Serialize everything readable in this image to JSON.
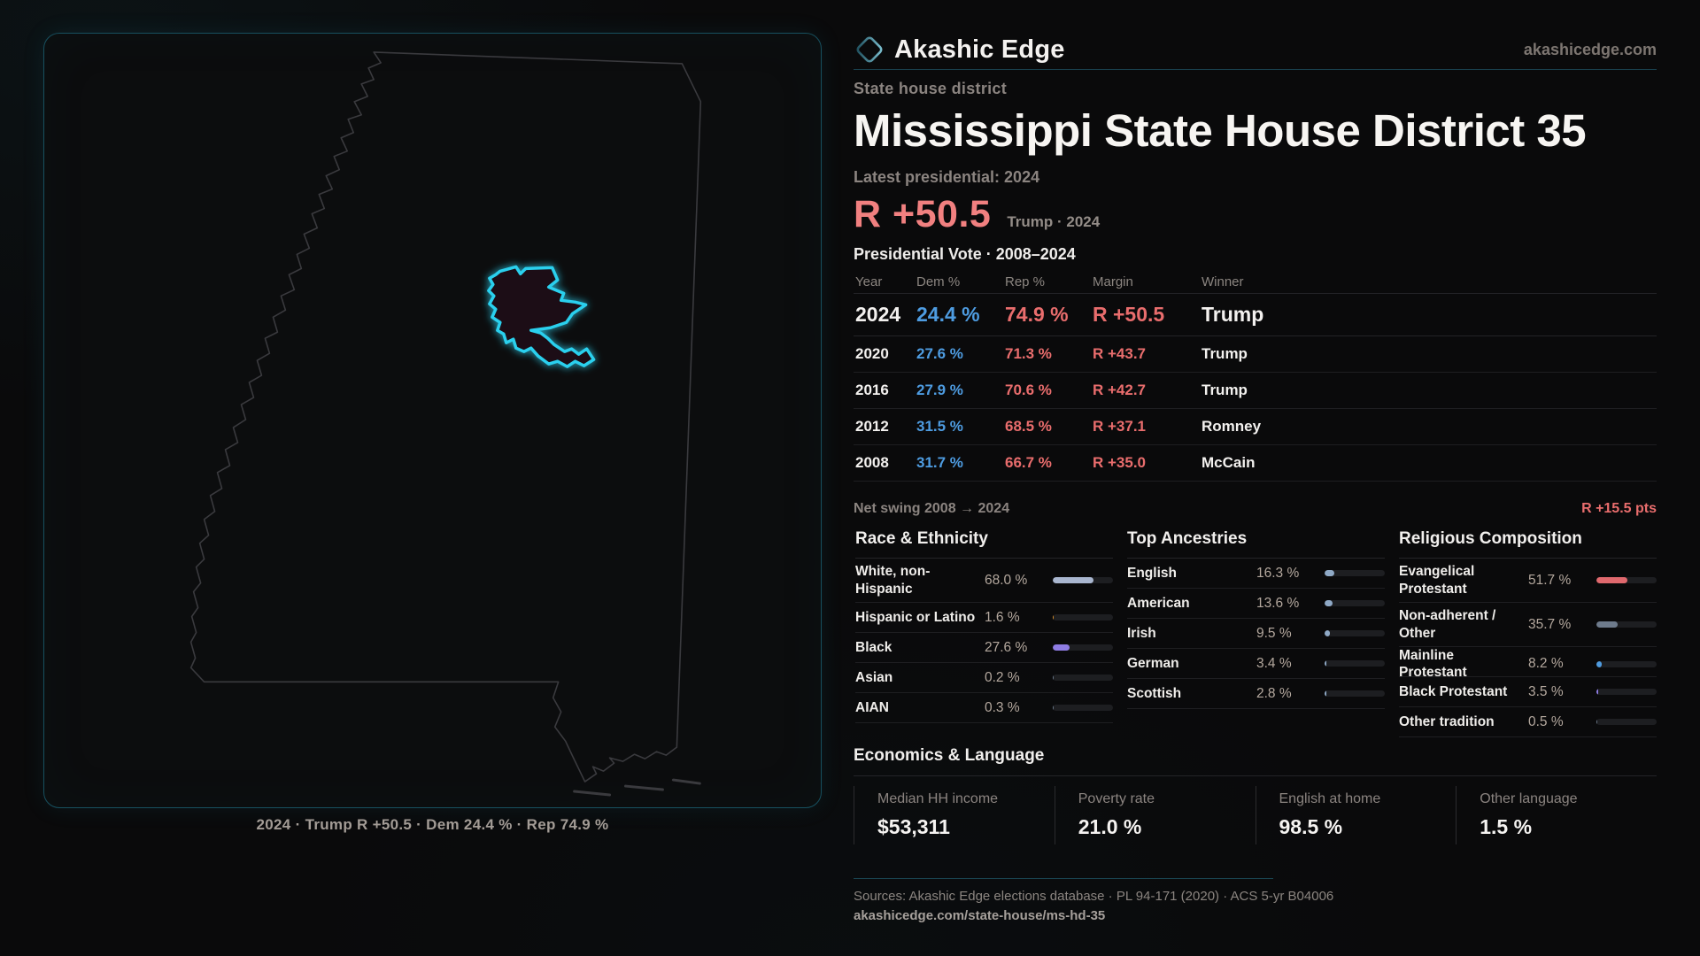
{
  "brand": {
    "name": "Akashic Edge",
    "site": "akashicedge.com"
  },
  "map": {
    "caption": "2024 · Trump R +50.5 · Dem 24.4 % · Rep 74.9 %",
    "state_name": "Mississippi",
    "district_color": "#2bd0ee"
  },
  "header": {
    "eyebrow": "State house district",
    "title": "Mississippi State House District 35"
  },
  "latest": {
    "label": "Latest presidential: 2024",
    "margin": "R +50.5",
    "sub": "Trump · 2024"
  },
  "table": {
    "title": "Presidential Vote · 2008–2024",
    "columns": [
      "Year",
      "Dem %",
      "Rep %",
      "Margin",
      "Winner"
    ],
    "rows": [
      {
        "year": "2024",
        "dem": "24.4 %",
        "rep": "74.9 %",
        "margin": "R +50.5",
        "winner": "Trump"
      },
      {
        "year": "2020",
        "dem": "27.6 %",
        "rep": "71.3 %",
        "margin": "R +43.7",
        "winner": "Trump"
      },
      {
        "year": "2016",
        "dem": "27.9 %",
        "rep": "70.6 %",
        "margin": "R +42.7",
        "winner": "Trump"
      },
      {
        "year": "2012",
        "dem": "31.5 %",
        "rep": "68.5 %",
        "margin": "R +37.1",
        "winner": "Romney"
      },
      {
        "year": "2008",
        "dem": "31.7 %",
        "rep": "66.7 %",
        "margin": "R +35.0",
        "winner": "McCain"
      }
    ]
  },
  "net_swing": {
    "label": "Net swing 2008 → 2024",
    "value": "R +15.5 pts"
  },
  "race": {
    "title": "Race & Ethnicity",
    "rows": [
      {
        "label": "White, non-Hispanic",
        "value": "68.0 %",
        "pct": 68.0,
        "color": "#a9b6cf"
      },
      {
        "label": "Hispanic or Latino",
        "value": "1.6 %",
        "pct": 1.6,
        "color": "#d9912e"
      },
      {
        "label": "Black",
        "value": "27.6 %",
        "pct": 27.6,
        "color": "#8e7ce3"
      },
      {
        "label": "Asian",
        "value": "0.2 %",
        "pct": 0.2,
        "color": "#6b7889"
      },
      {
        "label": "AIAN",
        "value": "0.3 %",
        "pct": 0.3,
        "color": "#6b7889"
      }
    ]
  },
  "ancestries": {
    "title": "Top Ancestries",
    "rows": [
      {
        "label": "English",
        "value": "16.3 %",
        "pct": 16.3,
        "color": "#8fa9c6"
      },
      {
        "label": "American",
        "value": "13.6 %",
        "pct": 13.6,
        "color": "#8fa9c6"
      },
      {
        "label": "Irish",
        "value": "9.5 %",
        "pct": 9.5,
        "color": "#8fa9c6"
      },
      {
        "label": "German",
        "value": "3.4 %",
        "pct": 3.4,
        "color": "#8fa9c6"
      },
      {
        "label": "Scottish",
        "value": "2.8 %",
        "pct": 2.8,
        "color": "#8fa9c6"
      }
    ]
  },
  "religion": {
    "title": "Religious Composition",
    "rows": [
      {
        "label": "Evangelical Protestant",
        "value": "51.7 %",
        "pct": 51.7,
        "color": "#e0696e"
      },
      {
        "label": "Non-adherent / Other",
        "value": "35.7 %",
        "pct": 35.7,
        "color": "#6e7b8c"
      },
      {
        "label": "Mainline Protestant",
        "value": "8.2 %",
        "pct": 8.2,
        "color": "#4f9bdf"
      },
      {
        "label": "Black Protestant",
        "value": "3.5 %",
        "pct": 3.5,
        "color": "#8e7ce3"
      },
      {
        "label": "Other tradition",
        "value": "0.5 %",
        "pct": 0.5,
        "color": "#6b7889"
      }
    ]
  },
  "econ": {
    "title": "Economics & Language",
    "cards": [
      {
        "label": "Median HH income",
        "value": "$53,311"
      },
      {
        "label": "Poverty rate",
        "value": "21.0 %"
      },
      {
        "label": "English at home",
        "value": "98.5 %"
      },
      {
        "label": "Other language",
        "value": "1.5 %"
      }
    ]
  },
  "footer": {
    "sources": "Sources: Akashic Edge elections database · PL 94-171 (2020) · ACS 5-yr B04006",
    "link": "akashicedge.com/state-house/ms-hd-35"
  }
}
